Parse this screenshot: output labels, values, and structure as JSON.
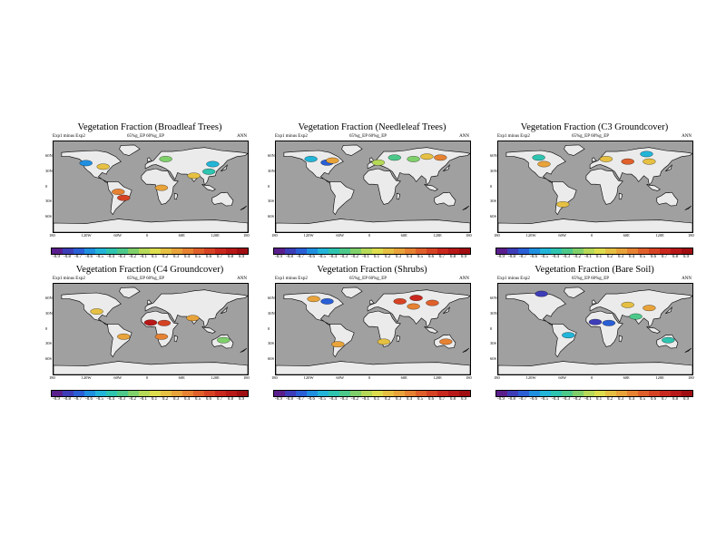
{
  "chart_data": [
    {
      "type": "heatmap",
      "title": "Vegetation Fraction (Broadleaf Trees)",
      "subtitle_left": "Exp1 minus Exp2",
      "subtitle_mid": "65%g_EP  60%g_EP",
      "subtitle_right": "ANN",
      "lat_ticks": [
        "60N",
        "30N",
        "0",
        "30S",
        "60S"
      ],
      "lon_ticks": [
        "180",
        "120W",
        "60W",
        "0",
        "60E",
        "120E",
        "180"
      ],
      "colorbar": [
        "-0.9",
        "-0.8",
        "-0.7",
        "-0.6",
        "-0.5",
        "-0.4",
        "-0.3",
        "-0.2",
        "-0.1",
        "0.1",
        "0.2",
        "0.3",
        "0.4",
        "0.5",
        "0.6",
        "0.7",
        "0.8",
        "0.9"
      ],
      "patches": [
        {
          "lon": -120,
          "lat": 47,
          "value": -0.6
        },
        {
          "lon": -88,
          "lat": 40,
          "value": 0.2
        },
        {
          "lon": -60,
          "lat": -10,
          "value": 0.4
        },
        {
          "lon": -50,
          "lat": -22,
          "value": 0.6
        },
        {
          "lon": 20,
          "lat": -2,
          "value": 0.3
        },
        {
          "lon": 28,
          "lat": 55,
          "value": -0.2
        },
        {
          "lon": 108,
          "lat": 30,
          "value": -0.4
        },
        {
          "lon": 115,
          "lat": 45,
          "value": -0.5
        },
        {
          "lon": 80,
          "lat": 22,
          "value": 0.2
        }
      ]
    },
    {
      "type": "heatmap",
      "title": "Vegetation Fraction (Needleleaf Trees)",
      "subtitle_left": "Exp1 minus Exp2",
      "subtitle_mid": "65%g_EP  60%g_EP",
      "subtitle_right": "ANN",
      "lat_ticks": [
        "60N",
        "30N",
        "0",
        "30S",
        "60S"
      ],
      "lon_ticks": [
        "180",
        "120W",
        "60W",
        "0",
        "60E",
        "120E",
        "180"
      ],
      "colorbar": [
        "-0.9",
        "-0.8",
        "-0.7",
        "-0.6",
        "-0.5",
        "-0.4",
        "-0.3",
        "-0.2",
        "-0.1",
        "0.1",
        "0.2",
        "0.3",
        "0.4",
        "0.5",
        "0.6",
        "0.7",
        "0.8",
        "0.9"
      ],
      "patches": [
        {
          "lon": -115,
          "lat": 55,
          "value": -0.5
        },
        {
          "lon": -85,
          "lat": 48,
          "value": -0.7
        },
        {
          "lon": -75,
          "lat": 52,
          "value": 0.3
        },
        {
          "lon": 40,
          "lat": 58,
          "value": -0.3
        },
        {
          "lon": 75,
          "lat": 55,
          "value": -0.2
        },
        {
          "lon": 100,
          "lat": 60,
          "value": 0.2
        },
        {
          "lon": 125,
          "lat": 58,
          "value": 0.4
        },
        {
          "lon": 10,
          "lat": 48,
          "value": -0.1
        }
      ]
    },
    {
      "type": "heatmap",
      "title": "Vegetation Fraction (C3 Groundcover)",
      "subtitle_left": "Exp1 minus Exp2",
      "subtitle_mid": "65%g_EP  60%g_EP",
      "subtitle_right": "ANN",
      "lat_ticks": [
        "60N",
        "30N",
        "0",
        "30S",
        "60S"
      ],
      "lon_ticks": [
        "180",
        "120W",
        "60W",
        "0",
        "60E",
        "120E",
        "180"
      ],
      "colorbar": [
        "-0.9",
        "-0.8",
        "-0.7",
        "-0.6",
        "-0.5",
        "-0.4",
        "-0.3",
        "-0.2",
        "-0.1",
        "0.1",
        "0.2",
        "0.3",
        "0.4",
        "0.5",
        "0.6",
        "0.7",
        "0.8",
        "0.9"
      ],
      "patches": [
        {
          "lon": -105,
          "lat": 58,
          "value": -0.4
        },
        {
          "lon": -95,
          "lat": 45,
          "value": 0.3
        },
        {
          "lon": 20,
          "lat": 55,
          "value": 0.2
        },
        {
          "lon": 60,
          "lat": 50,
          "value": 0.5
        },
        {
          "lon": 100,
          "lat": 50,
          "value": 0.2
        },
        {
          "lon": 95,
          "lat": 65,
          "value": -0.5
        },
        {
          "lon": -60,
          "lat": -35,
          "value": 0.2
        }
      ]
    },
    {
      "type": "heatmap",
      "title": "Vegetation Fraction (C4 Groundcover)",
      "subtitle_left": "Exp1 minus Exp2",
      "subtitle_mid": "65%g_EP  60%g_EP",
      "subtitle_right": "ANN",
      "lat_ticks": [
        "60N",
        "30N",
        "0",
        "30S",
        "60S"
      ],
      "lon_ticks": [
        "180",
        "120W",
        "60W",
        "0",
        "60E",
        "120E",
        "180"
      ],
      "colorbar": [
        "-0.9",
        "-0.8",
        "-0.7",
        "-0.6",
        "-0.5",
        "-0.4",
        "-0.3",
        "-0.2",
        "-0.1",
        "0.1",
        "0.2",
        "0.3",
        "0.4",
        "0.5",
        "0.6",
        "0.7",
        "0.8",
        "0.9"
      ],
      "patches": [
        {
          "lon": 0,
          "lat": 13,
          "value": 0.8
        },
        {
          "lon": 25,
          "lat": 12,
          "value": 0.6
        },
        {
          "lon": 20,
          "lat": -15,
          "value": 0.4
        },
        {
          "lon": -50,
          "lat": -15,
          "value": 0.3
        },
        {
          "lon": 78,
          "lat": 22,
          "value": 0.3
        },
        {
          "lon": 135,
          "lat": -22,
          "value": -0.2
        },
        {
          "lon": -100,
          "lat": 35,
          "value": 0.2
        }
      ]
    },
    {
      "type": "heatmap",
      "title": "Vegetation Fraction (Shrubs)",
      "subtitle_left": "Exp1 minus Exp2",
      "subtitle_mid": "65%g_EP  60%g_EP",
      "subtitle_right": "ANN",
      "lat_ticks": [
        "60N",
        "30N",
        "0",
        "30S",
        "60S"
      ],
      "lon_ticks": [
        "180",
        "120W",
        "60W",
        "0",
        "60E",
        "120E",
        "180"
      ],
      "colorbar": [
        "-0.9",
        "-0.8",
        "-0.7",
        "-0.6",
        "-0.5",
        "-0.4",
        "-0.3",
        "-0.2",
        "-0.1",
        "0.1",
        "0.2",
        "0.3",
        "0.4",
        "0.5",
        "0.6",
        "0.7",
        "0.8",
        "0.9"
      ],
      "patches": [
        {
          "lon": -110,
          "lat": 60,
          "value": 0.3
        },
        {
          "lon": -85,
          "lat": 55,
          "value": -0.7
        },
        {
          "lon": 50,
          "lat": 55,
          "value": 0.6
        },
        {
          "lon": 80,
          "lat": 62,
          "value": 0.7
        },
        {
          "lon": 110,
          "lat": 52,
          "value": 0.5
        },
        {
          "lon": 75,
          "lat": 45,
          "value": 0.4
        },
        {
          "lon": 135,
          "lat": -25,
          "value": 0.4
        },
        {
          "lon": -65,
          "lat": -30,
          "value": 0.3
        },
        {
          "lon": 20,
          "lat": -25,
          "value": 0.2
        }
      ]
    },
    {
      "type": "heatmap",
      "title": "Vegetation Fraction (Bare Soil)",
      "subtitle_left": "Exp1 minus Exp2",
      "subtitle_mid": "65%g_EP  60%g_EP",
      "subtitle_right": "ANN",
      "lat_ticks": [
        "60N",
        "30N",
        "0",
        "30S",
        "60S"
      ],
      "lon_ticks": [
        "180",
        "120W",
        "60W",
        "0",
        "60E",
        "120E",
        "180"
      ],
      "colorbar": [
        "-0.9",
        "-0.8",
        "-0.7",
        "-0.6",
        "-0.5",
        "-0.4",
        "-0.3",
        "-0.2",
        "-0.1",
        "0.1",
        "0.2",
        "0.3",
        "0.4",
        "0.5",
        "0.6",
        "0.7",
        "0.8",
        "0.9"
      ],
      "patches": [
        {
          "lon": -100,
          "lat": 70,
          "value": -0.8
        },
        {
          "lon": 0,
          "lat": 14,
          "value": -0.8
        },
        {
          "lon": 25,
          "lat": 12,
          "value": -0.7
        },
        {
          "lon": -50,
          "lat": -12,
          "value": -0.5
        },
        {
          "lon": 135,
          "lat": -22,
          "value": -0.4
        },
        {
          "lon": 60,
          "lat": 48,
          "value": 0.2
        },
        {
          "lon": 100,
          "lat": 42,
          "value": 0.3
        },
        {
          "lon": 75,
          "lat": 25,
          "value": -0.3
        }
      ]
    }
  ],
  "colors": {
    "ocean": "#a0a0a0",
    "land": "#ebebeb",
    "palette": [
      "#5a1e8c",
      "#3d3db8",
      "#2a5fd6",
      "#1f8fe0",
      "#22b5d8",
      "#2ec4b0",
      "#4cc98a",
      "#7fd06b",
      "#b6d957",
      "#dddd4e",
      "#e6c042",
      "#e8a33a",
      "#e68232",
      "#e0602b",
      "#d64324",
      "#c9281e",
      "#b81818",
      "#a00e12"
    ]
  }
}
